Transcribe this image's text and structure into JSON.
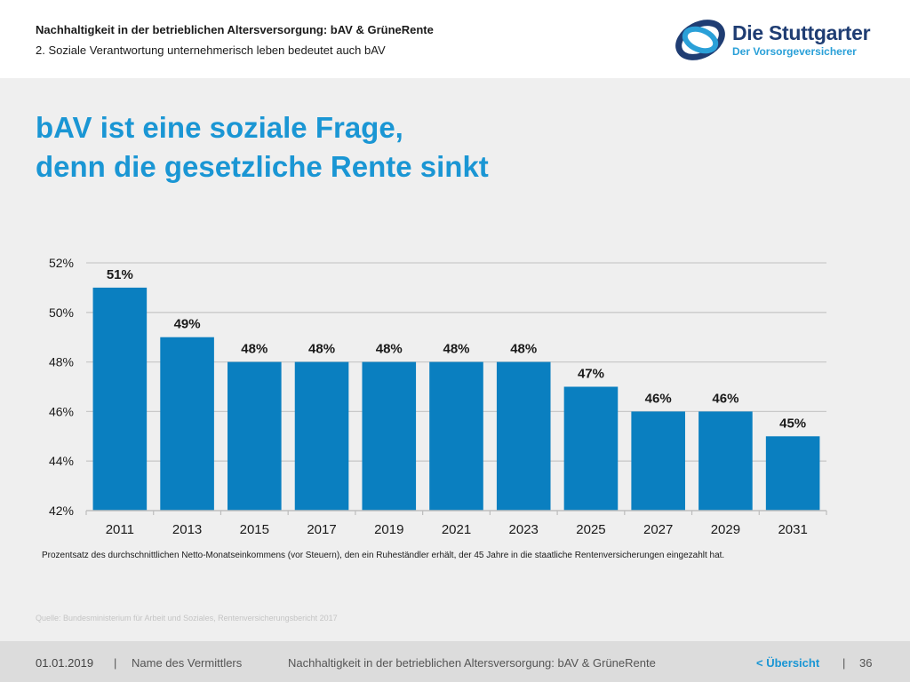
{
  "header": {
    "title": "Nachhaltigkeit in der betrieblichen Altersversorgung: bAV & GrüneRente",
    "subtitle": "2. Soziale Verantwortung unternehmerisch leben bedeutet auch bAV"
  },
  "logo": {
    "name": "Die Stuttgarter",
    "tagline": "Der Vorsorgeversicherer"
  },
  "slide": {
    "title_line1": "bAV ist eine soziale Frage,",
    "title_line2": "denn die gesetzliche Rente sinkt"
  },
  "chart_data": {
    "type": "bar",
    "categories": [
      "2011",
      "2013",
      "2015",
      "2017",
      "2019",
      "2021",
      "2023",
      "2025",
      "2027",
      "2029",
      "2031"
    ],
    "values": [
      51,
      49,
      48,
      48,
      48,
      48,
      48,
      47,
      46,
      46,
      45
    ],
    "data_labels": [
      "51%",
      "49%",
      "48%",
      "48%",
      "48%",
      "48%",
      "48%",
      "47%",
      "46%",
      "46%",
      "45%"
    ],
    "y_ticks": [
      42,
      44,
      46,
      48,
      50,
      52
    ],
    "y_tick_labels": [
      "42%",
      "44%",
      "46%",
      "48%",
      "50%",
      "52%"
    ],
    "ylim": [
      42,
      52
    ],
    "grid": true,
    "title": "",
    "xlabel": "",
    "ylabel": ""
  },
  "caption": "Prozentsatz des durchschnittlichen Netto-Monatseinkommens (vor Steuern), den ein Ruheständler erhält, der 45 Jahre in die staatliche Rentenversicherungen eingezahlt hat.",
  "source": "Quelle: Bundesministerium für Arbeit und Soziales, Rentenversicherungsbericht 2017",
  "footer": {
    "date": "01.01.2019",
    "separator": "|",
    "agent": "Name des Vermittlers",
    "topic": "Nachhaltigkeit in der betrieblichen Altersversorgung: bAV & GrüneRente",
    "overview": "< Übersicht",
    "page": "36"
  },
  "colors": {
    "bar": "#0a7fc0",
    "title": "#1a96d4",
    "grid": "#c9c9c9",
    "axis": "#bdbdbd"
  }
}
